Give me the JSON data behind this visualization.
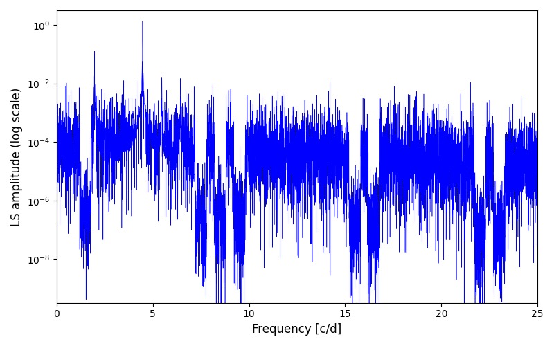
{
  "title": "",
  "xlabel": "Frequency [c/d]",
  "ylabel": "LS amplitude (log scale)",
  "line_color": "#0000ff",
  "xlim": [
    0,
    25
  ],
  "ylim_log": [
    -9.5,
    0.5
  ],
  "yticks": [
    1e-08,
    1e-06,
    0.0001,
    0.01,
    1.0
  ],
  "xticks": [
    0,
    5,
    10,
    15,
    20,
    25
  ],
  "background_color": "#ffffff",
  "figsize": [
    8.0,
    5.0
  ],
  "dpi": 100,
  "seed": 137,
  "n_freqs": 8000,
  "freq_max": 25.0,
  "main_freq": 4.47,
  "main_amp": 1.0,
  "second_freq": 1.97,
  "second_amp": 0.13,
  "third_freq": 6.44,
  "third_amp": 0.012,
  "fourth_freq": 8.94,
  "fourth_amp": 0.006,
  "fifth_freq": 11.41,
  "fifth_amp": 0.00035,
  "sixth_freq": 13.0,
  "sixth_amp": 0.00038,
  "seventh_freq": 22.5,
  "seventh_amp": 7e-05
}
